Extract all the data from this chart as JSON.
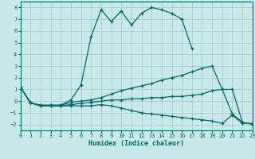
{
  "title": "",
  "xlabel": "Humidex (Indice chaleur)",
  "ylabel": "",
  "bg_color": "#c9e9e9",
  "grid_color": "#aacfcf",
  "line_color": "#006868",
  "xlim": [
    0,
    23
  ],
  "ylim": [
    -2.5,
    8.5
  ],
  "xticks": [
    0,
    1,
    2,
    3,
    4,
    5,
    6,
    7,
    8,
    9,
    10,
    11,
    12,
    13,
    14,
    15,
    16,
    17,
    18,
    19,
    20,
    21,
    22,
    23
  ],
  "yticks": [
    -2,
    -1,
    0,
    1,
    2,
    3,
    4,
    5,
    6,
    7,
    8
  ],
  "series": [
    {
      "x": [
        0,
        1,
        2,
        3,
        4,
        5,
        6,
        7,
        8,
        9,
        10,
        11,
        12,
        13,
        14,
        15,
        16,
        17
      ],
      "y": [
        1.2,
        -0.15,
        -0.35,
        -0.35,
        -0.35,
        0.1,
        1.35,
        5.5,
        7.8,
        6.8,
        7.7,
        6.5,
        7.5,
        8.0,
        7.8,
        7.5,
        7.0,
        4.5
      ]
    },
    {
      "x": [
        0,
        1,
        2,
        3,
        4,
        5,
        6,
        7,
        8,
        9,
        10,
        11,
        12,
        13,
        14,
        15,
        16,
        17,
        18,
        19,
        20,
        21,
        22
      ],
      "y": [
        1.2,
        -0.15,
        -0.35,
        -0.35,
        -0.35,
        -0.1,
        0.0,
        0.1,
        0.3,
        0.6,
        0.9,
        1.1,
        1.3,
        1.5,
        1.8,
        2.0,
        2.2,
        2.5,
        2.8,
        3.0,
        1.0,
        -1.1,
        -1.8
      ]
    },
    {
      "x": [
        0,
        1,
        2,
        3,
        4,
        5,
        6,
        7,
        8,
        9,
        10,
        11,
        12,
        13,
        14,
        15,
        16,
        17,
        18,
        19,
        20,
        21,
        22,
        23
      ],
      "y": [
        1.2,
        -0.15,
        -0.4,
        -0.4,
        -0.4,
        -0.4,
        -0.4,
        -0.4,
        -0.3,
        -0.4,
        -0.6,
        -0.8,
        -1.0,
        -1.1,
        -1.2,
        -1.3,
        -1.4,
        -1.5,
        -1.6,
        -1.7,
        -1.9,
        -1.2,
        -1.9,
        -1.9
      ]
    },
    {
      "x": [
        0,
        1,
        2,
        3,
        4,
        5,
        6,
        7,
        8,
        9,
        10,
        11,
        12,
        13,
        14,
        15,
        16,
        17,
        18,
        19,
        20,
        21,
        22,
        23
      ],
      "y": [
        1.2,
        -0.15,
        -0.4,
        -0.4,
        -0.4,
        -0.3,
        -0.2,
        -0.1,
        0.0,
        0.1,
        0.1,
        0.2,
        0.2,
        0.3,
        0.3,
        0.4,
        0.4,
        0.5,
        0.6,
        0.9,
        1.0,
        1.0,
        -1.8,
        -2.0
      ]
    }
  ]
}
